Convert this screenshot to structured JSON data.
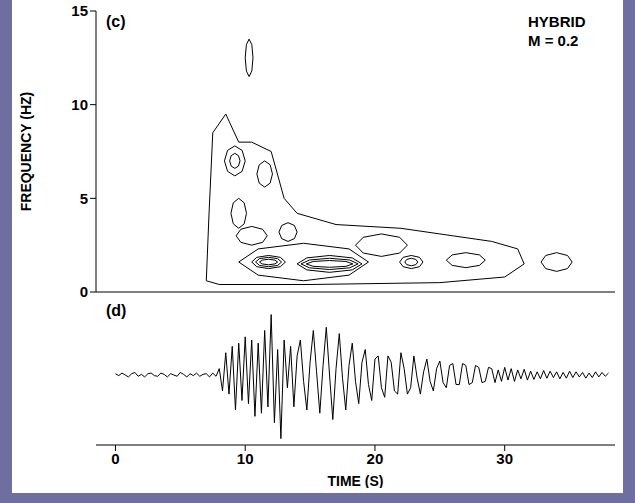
{
  "chart_data": [
    {
      "type": "contour",
      "title": "(c)",
      "annotations": [
        "HYBRID",
        "M = 0.2"
      ],
      "y_label": "FREQUENCY (HZ)",
      "xlim": [
        -1.5,
        38.5
      ],
      "xticks": [
        0,
        10,
        20,
        30
      ],
      "ylim": [
        0,
        15
      ],
      "yticks": [
        0,
        5,
        10,
        15
      ],
      "tick_labels": "y",
      "color": "#000000",
      "contours": [
        {
          "x": [
            7,
            7.2,
            7.5,
            8.5,
            9.5,
            10.5,
            12,
            13,
            14,
            17,
            22,
            26,
            29,
            31,
            31.5,
            30,
            25,
            15,
            8,
            7
          ],
          "y": [
            0.6,
            4,
            8.5,
            9.5,
            8,
            8,
            7.5,
            5,
            4.2,
            3.6,
            3.4,
            3,
            2.7,
            2.3,
            1.5,
            0.8,
            0.5,
            0.4,
            0.4,
            0.6
          ]
        },
        {
          "x": [
            19.5,
            18,
            14.5,
            11,
            9.5,
            11,
            14.5,
            18,
            19.5
          ],
          "y": [
            1.6,
            2.3,
            2.6,
            2.3,
            1.6,
            0.9,
            0.6,
            0.9,
            1.6
          ]
        },
        {
          "x": [
            13.1,
            12.71,
            11.8,
            10.89,
            10.5,
            10.89,
            11.8,
            12.71,
            13.1
          ],
          "y": [
            1.6,
            1.85,
            1.95,
            1.85,
            1.6,
            1.35,
            1.25,
            1.35,
            1.6
          ]
        },
        {
          "x": [
            12.8,
            12.5,
            11.8,
            11.1,
            10.8,
            11.1,
            11.8,
            12.5,
            12.8
          ],
          "y": [
            1.6,
            1.78,
            1.85,
            1.78,
            1.6,
            1.42,
            1.35,
            1.42,
            1.6
          ]
        },
        {
          "x": [
            12.5,
            12.29,
            11.8,
            11.31,
            11.1,
            11.31,
            11.8,
            12.29,
            12.5
          ],
          "y": [
            1.6,
            1.7,
            1.75,
            1.7,
            1.6,
            1.5,
            1.45,
            1.5,
            1.6
          ]
        },
        {
          "x": [
            19,
            18.25,
            16.5,
            14.75,
            14,
            14.75,
            16.5,
            18.25,
            19
          ],
          "y": [
            1.5,
            1.82,
            1.95,
            1.82,
            1.5,
            1.18,
            1.05,
            1.18,
            1.5
          ]
        },
        {
          "x": [
            18.7,
            18.04,
            16.5,
            14.96,
            14.3,
            14.96,
            16.5,
            18.04,
            18.7
          ],
          "y": [
            1.5,
            1.71,
            1.8,
            1.71,
            1.5,
            1.29,
            1.2,
            1.29,
            1.5
          ]
        },
        {
          "x": [
            18.3,
            17.76,
            16.5,
            15.24,
            14.7,
            15.24,
            16.5,
            17.76,
            18.3
          ],
          "y": [
            1.5,
            1.63,
            1.68,
            1.63,
            1.5,
            1.37,
            1.32,
            1.37,
            1.5
          ]
        },
        {
          "x": [
            23.7,
            23.43,
            22.8,
            22.17,
            21.9,
            22.17,
            22.8,
            23.43,
            23.7
          ],
          "y": [
            1.6,
            1.85,
            1.95,
            1.85,
            1.6,
            1.35,
            1.25,
            1.35,
            1.6
          ]
        },
        {
          "x": [
            23.3,
            23.15,
            22.8,
            22.45,
            22.3,
            22.45,
            22.8,
            23.15,
            23.3
          ],
          "y": [
            1.6,
            1.74,
            1.8,
            1.74,
            1.6,
            1.46,
            1.4,
            1.46,
            1.6
          ]
        },
        {
          "x": [
            10,
            9.76,
            9.2,
            8.64,
            8.4,
            8.64,
            9.2,
            9.76,
            10
          ],
          "y": [
            7,
            7.56,
            7.8,
            7.56,
            7,
            6.44,
            6.2,
            6.44,
            7
          ]
        },
        {
          "x": [
            9.6,
            9.48,
            9.2,
            8.92,
            8.8,
            8.92,
            9.2,
            9.48,
            9.6
          ],
          "y": [
            7,
            7.28,
            7.4,
            7.28,
            7,
            6.72,
            6.6,
            6.72,
            7
          ]
        },
        {
          "x": [
            12.1,
            11.92,
            11.5,
            11.08,
            10.9,
            11.08,
            11.5,
            11.92,
            12.1
          ],
          "y": [
            6.3,
            6.79,
            7,
            6.79,
            6.3,
            5.81,
            5.6,
            5.81,
            6.3
          ]
        },
        {
          "x": [
            10.1,
            9.92,
            9.5,
            9.08,
            8.9,
            9.08,
            9.5,
            9.92,
            10.1
          ],
          "y": [
            4.2,
            4.76,
            5,
            4.76,
            4.2,
            3.64,
            3.4,
            3.64,
            4.2
          ]
        },
        {
          "x": [
            14,
            13.79,
            13.3,
            12.81,
            12.6,
            12.81,
            13.3,
            13.79,
            14
          ],
          "y": [
            3.2,
            3.55,
            3.7,
            3.55,
            3.2,
            2.85,
            2.7,
            2.85,
            3.2
          ]
        },
        {
          "x": [
            11.7,
            11.34,
            10.5,
            9.66,
            9.3,
            9.66,
            10.5,
            11.34,
            11.7
          ],
          "y": [
            3,
            3.35,
            3.5,
            3.35,
            3,
            2.65,
            2.5,
            2.65,
            3
          ]
        },
        {
          "x": [
            22.5,
            21.9,
            20.5,
            19.1,
            18.5,
            19.1,
            20.5,
            21.9,
            22.5
          ],
          "y": [
            2.5,
            2.92,
            3.1,
            2.92,
            2.5,
            2.08,
            1.9,
            2.08,
            2.5
          ]
        },
        {
          "x": [
            28.5,
            28.05,
            27,
            25.95,
            25.5,
            25.95,
            27,
            28.05,
            28.5
          ],
          "y": [
            1.7,
            1.98,
            2.1,
            1.98,
            1.7,
            1.42,
            1.3,
            1.42,
            1.7
          ]
        },
        {
          "x": [
            35.2,
            34.84,
            34,
            33.16,
            32.8,
            33.16,
            34,
            34.84,
            35.2
          ],
          "y": [
            1.6,
            1.95,
            2.1,
            1.95,
            1.6,
            1.25,
            1.1,
            1.25,
            1.6
          ]
        },
        {
          "x": [
            10.6,
            10.51,
            10.3,
            10.09,
            10,
            10.09,
            10.3,
            10.51,
            10.6
          ],
          "y": [
            12.5,
            13.2,
            13.5,
            13.2,
            12.5,
            11.8,
            11.5,
            11.8,
            12.5
          ]
        }
      ]
    },
    {
      "type": "line",
      "title": "(d)",
      "x_label": "TIME (S)",
      "xlim": [
        -1.5,
        38.5
      ],
      "xticks": [
        0,
        10,
        20,
        30
      ],
      "ylim": [
        -1.1,
        1.1
      ],
      "tick_labels": "x",
      "color": "#000000",
      "x": [
        0,
        0.25,
        0.5,
        0.75,
        1,
        1.25,
        1.5,
        1.75,
        2,
        2.25,
        2.5,
        2.75,
        3,
        3.25,
        3.5,
        3.75,
        4,
        4.25,
        4.5,
        4.75,
        5,
        5.25,
        5.5,
        5.75,
        6,
        6.25,
        6.5,
        6.75,
        7,
        7.25,
        7.5,
        7.75,
        8,
        8.25,
        8.5,
        8.75,
        9,
        9.25,
        9.5,
        9.75,
        10,
        10.25,
        10.5,
        10.75,
        11,
        11.25,
        11.5,
        11.75,
        12,
        12.25,
        12.5,
        12.75,
        13,
        13.25,
        13.5,
        13.75,
        14,
        14.25,
        14.5,
        14.75,
        15,
        15.25,
        15.5,
        15.75,
        16,
        16.25,
        16.5,
        16.75,
        17,
        17.25,
        17.5,
        17.75,
        18,
        18.25,
        18.5,
        18.75,
        19,
        19.25,
        19.5,
        19.75,
        20,
        20.25,
        20.5,
        20.75,
        21,
        21.25,
        21.5,
        21.75,
        22,
        22.25,
        22.5,
        22.75,
        23,
        23.25,
        23.5,
        23.75,
        24,
        24.25,
        24.5,
        24.75,
        25,
        25.25,
        25.5,
        25.75,
        26,
        26.25,
        26.5,
        26.75,
        27,
        27.25,
        27.5,
        27.75,
        28,
        28.25,
        28.5,
        28.75,
        29,
        29.25,
        29.5,
        29.75,
        30,
        30.25,
        30.5,
        30.75,
        31,
        31.25,
        31.5,
        31.75,
        32,
        32.25,
        32.5,
        32.75,
        33,
        33.25,
        33.5,
        33.75,
        34,
        34.25,
        34.5,
        34.75,
        35,
        35.25,
        35.5,
        35.75,
        36,
        36.25,
        36.5,
        36.75,
        37,
        37.25,
        37.5,
        37.75,
        38
      ],
      "values": [
        0.02,
        -0.01,
        0.03,
        0,
        -0.03,
        0.02,
        0.04,
        -0.02,
        0.01,
        -0.03,
        0.02,
        0.03,
        -0.01,
        -0.02,
        0.03,
        0.01,
        -0.03,
        0.02,
        0,
        -0.02,
        0.04,
        0.01,
        -0.03,
        0.02,
        -0.01,
        0.03,
        -0.02,
        0.01,
        0.02,
        -0.03,
        0.03,
        -0.02,
        0.1,
        -0.25,
        0.35,
        -0.3,
        0.45,
        -0.55,
        0.5,
        -0.4,
        0.6,
        -0.45,
        0.55,
        -0.65,
        0.5,
        -0.6,
        0.7,
        -0.5,
        0.95,
        -0.75,
        0.4,
        -1,
        0.55,
        -0.2,
        0.45,
        -0.5,
        0.3,
        0.55,
        -0.1,
        -0.55,
        0.2,
        0.7,
        0.05,
        -0.6,
        0.15,
        0.75,
        0,
        -0.7,
        0.1,
        0.65,
        -0.05,
        -0.55,
        0.15,
        0.5,
        -0.1,
        -0.45,
        0.2,
        0.4,
        -0.15,
        -0.4,
        0.25,
        0.3,
        -0.2,
        -0.35,
        0.3,
        0.2,
        -0.25,
        -0.3,
        0.35,
        0.1,
        -0.3,
        -0.2,
        0.3,
        -0.05,
        -0.3,
        0.05,
        0.25,
        -0.1,
        -0.25,
        0.1,
        0.22,
        -0.12,
        -0.2,
        0.15,
        0.18,
        -0.15,
        -0.15,
        0.18,
        0.15,
        -0.15,
        -0.12,
        0.15,
        0.12,
        -0.12,
        -0.1,
        0.12,
        0.1,
        -0.12,
        0.08,
        -0.1,
        0.12,
        -0.08,
        0.1,
        -0.1,
        0.08,
        -0.06,
        0.09,
        -0.08,
        0.06,
        -0.07,
        0.05,
        -0.06,
        0.07,
        -0.05,
        0.06,
        -0.04,
        0.05,
        -0.06,
        0.04,
        -0.05,
        0.06,
        -0.04,
        0.05,
        -0.03,
        0.04,
        -0.05,
        0.03,
        -0.04,
        0.05,
        -0.03,
        0.04,
        -0.02,
        0.03
      ]
    }
  ]
}
